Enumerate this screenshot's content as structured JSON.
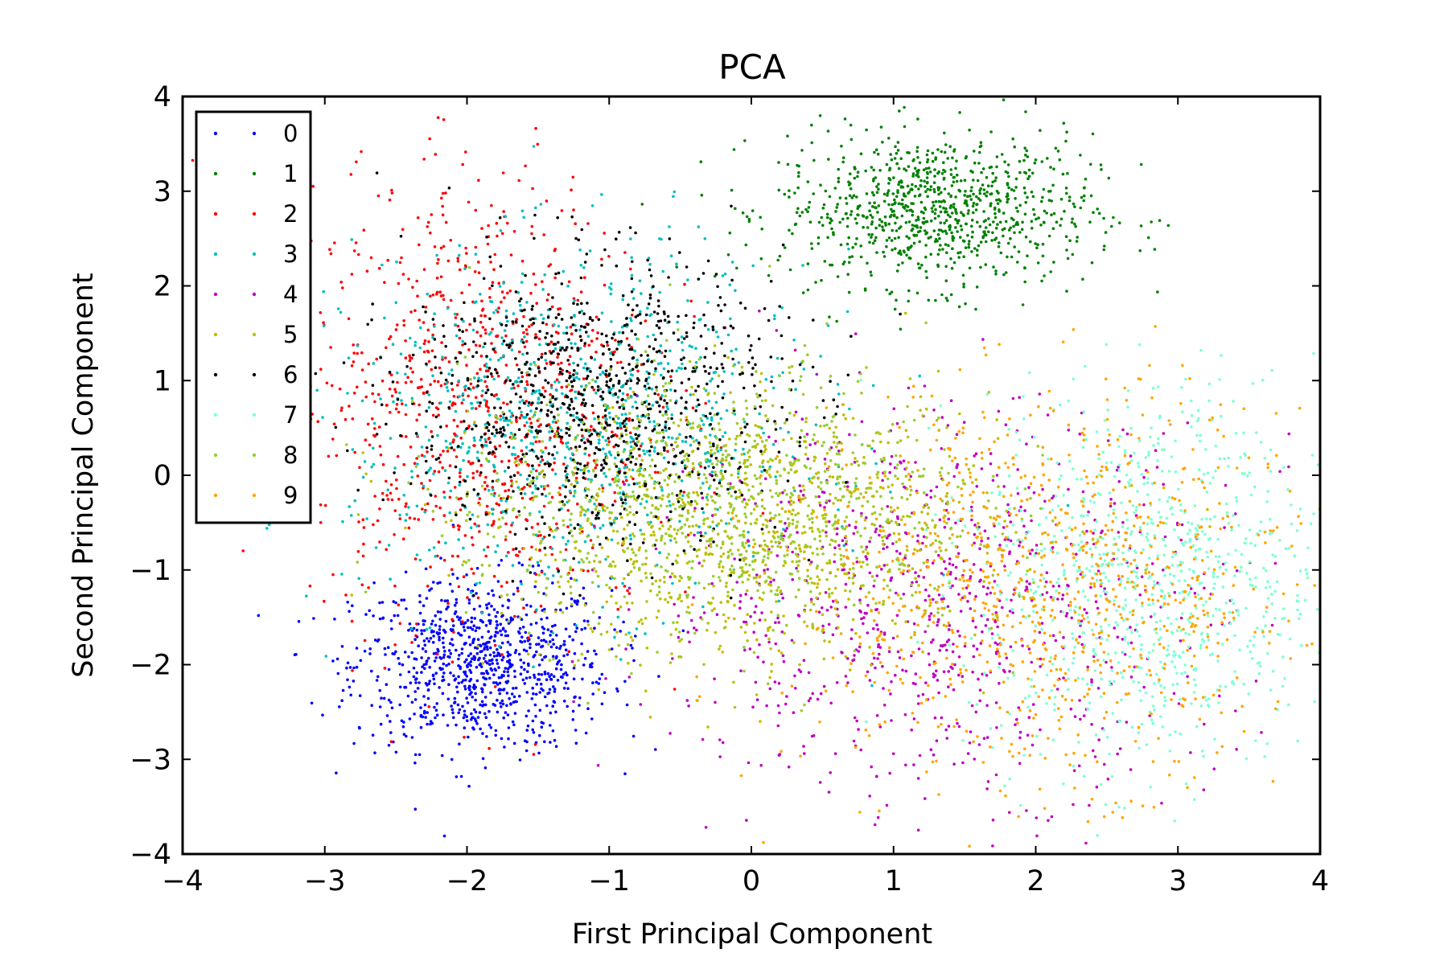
{
  "chart_data": {
    "type": "scatter",
    "title": "PCA",
    "xlabel": "First Principal Component",
    "ylabel": "Second Principal Component",
    "xlim": [
      -4,
      4
    ],
    "ylim": [
      -4,
      4
    ],
    "x_ticks": [
      -4,
      -3,
      -2,
      -1,
      0,
      1,
      2,
      3,
      4
    ],
    "y_ticks": [
      -4,
      -3,
      -2,
      -1,
      0,
      1,
      2,
      3,
      4
    ],
    "x_tick_labels": [
      "−4",
      "−3",
      "−2",
      "−1",
      "0",
      "1",
      "2",
      "3",
      "4"
    ],
    "y_tick_labels": [
      "−4",
      "−3",
      "−2",
      "−1",
      "0",
      "1",
      "2",
      "3",
      "4"
    ],
    "grid": false,
    "legend_position": "upper-left",
    "series": [
      {
        "name": "0",
        "color": "#0000ff",
        "center": [
          -1.9,
          -2.0
        ],
        "spread": [
          0.45,
          0.45
        ]
      },
      {
        "name": "1",
        "color": "#008000",
        "center": [
          1.3,
          2.8
        ],
        "spread": [
          0.55,
          0.4
        ]
      },
      {
        "name": "2",
        "color": "#ff0000",
        "center": [
          -1.9,
          0.8
        ],
        "spread": [
          0.6,
          1.2
        ]
      },
      {
        "name": "3",
        "color": "#00bfbf",
        "center": [
          -1.2,
          0.5
        ],
        "spread": [
          0.8,
          0.9
        ]
      },
      {
        "name": "4",
        "color": "#bf00bf",
        "center": [
          1.3,
          -1.3
        ],
        "spread": [
          1.0,
          1.0
        ]
      },
      {
        "name": "5",
        "color": "#bfbf00",
        "center": [
          0.0,
          -0.6
        ],
        "spread": [
          0.9,
          0.7
        ]
      },
      {
        "name": "6",
        "color": "#000000",
        "center": [
          -1.1,
          0.8
        ],
        "spread": [
          0.65,
          0.75
        ]
      },
      {
        "name": "7",
        "color": "#7fffd4",
        "center": [
          2.8,
          -1.1
        ],
        "spread": [
          0.6,
          1.0
        ]
      },
      {
        "name": "8",
        "color": "#9acd32",
        "center": [
          -0.2,
          -0.3
        ],
        "spread": [
          0.9,
          0.7
        ]
      },
      {
        "name": "9",
        "color": "#ffa500",
        "center": [
          2.1,
          -1.2
        ],
        "spread": [
          0.9,
          1.0
        ]
      }
    ]
  }
}
